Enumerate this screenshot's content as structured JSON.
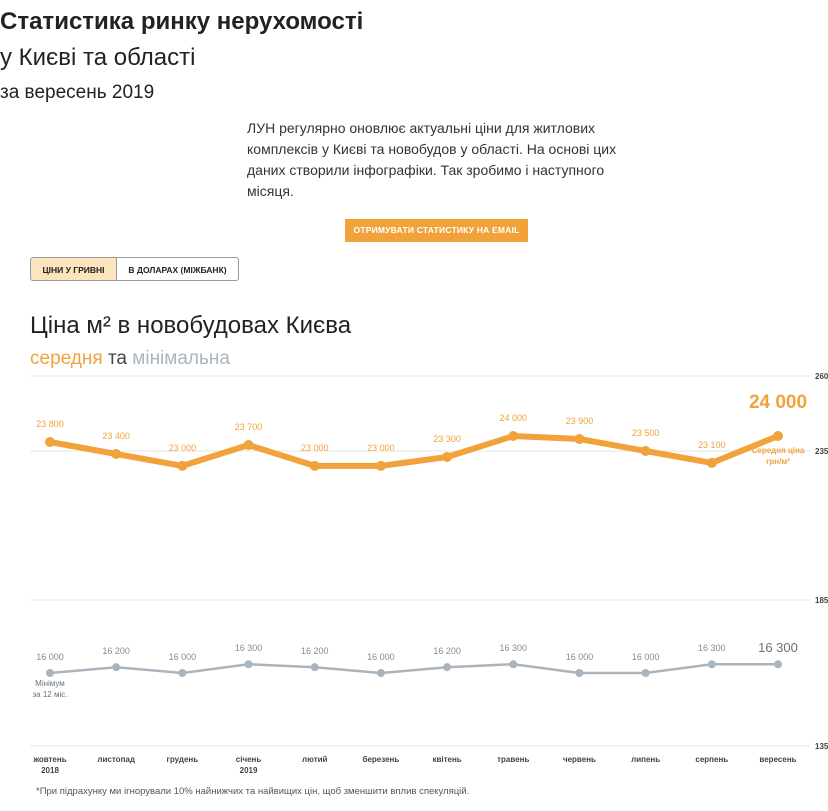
{
  "header": {
    "title_line1": "Статистика ринку нерухомості",
    "title_line2": "у Києві та області",
    "title_line3": "за вересень 2019",
    "intro": "ЛУН регулярно оновлює актуальні ціни для житлових комплексів у Києві та новобудов у області. На основі цих даних створили інфографіки. Так зробимо і наступного місяця."
  },
  "cta": {
    "label": "ОТРИМУВАТИ СТАТИСТИКУ НА EMAIL"
  },
  "toggle": {
    "uah_label": "ЦІНИ У ГРИВНІ",
    "usd_label": "В ДОЛАРАХ (МІЖБАНК)",
    "active": "uah"
  },
  "chart_title": "Ціна м² в новобудовах Києва",
  "chart_subtitle": {
    "avg": "середня",
    "and": "та",
    "min": "мінімальна"
  },
  "footnote": "*При підрахунку ми ігнорували 10% найнижчих та найвищих цін, щоб зменшити вплив спекуляцій.",
  "colors": {
    "avg": "#f2a23a",
    "min": "#aab4bd",
    "grid": "#e6e6e6",
    "label": "#8a8a8a"
  },
  "chart_data": {
    "type": "line",
    "title": "Ціна м² в новобудовах Києва",
    "categories": [
      "жовтень",
      "листопад",
      "грудень",
      "січень",
      "лютий",
      "березень",
      "квітень",
      "травень",
      "червень",
      "липень",
      "серпень",
      "вересень"
    ],
    "category_years": [
      "2018",
      "",
      "",
      "2019",
      "",
      "",
      "",
      "",
      "",
      "",
      "",
      ""
    ],
    "series": [
      {
        "key": "avg",
        "values": [
          23800,
          23400,
          23000,
          23700,
          23000,
          23000,
          23300,
          24000,
          23900,
          23500,
          23100,
          24000
        ],
        "labels": [
          "23 800",
          "23 400",
          "23 000",
          "23 700",
          "23 000",
          "23 000",
          "23 300",
          "24 000",
          "23 900",
          "23 500",
          "23 100",
          "24 000"
        ],
        "end_note": [
          "Середня ціна",
          "грн/м²"
        ]
      },
      {
        "key": "min",
        "values": [
          16000,
          16200,
          16000,
          16300,
          16200,
          16000,
          16200,
          16300,
          16000,
          16000,
          16300,
          16300
        ],
        "labels": [
          "16 000",
          "16 200",
          "16 000",
          "16 300",
          "16 200",
          "16 000",
          "16 200",
          "16 300",
          "16 000",
          "16 000",
          "16 300",
          "16 300"
        ],
        "start_note": [
          "Мінімум",
          "за 12 міс."
        ]
      }
    ],
    "y_tick_labels": [
      "260",
      "235",
      "185",
      "135"
    ],
    "y_tick_values": [
      26000,
      23500,
      18500,
      13500
    ],
    "ylim": [
      13500,
      26000
    ],
    "grid": true
  }
}
